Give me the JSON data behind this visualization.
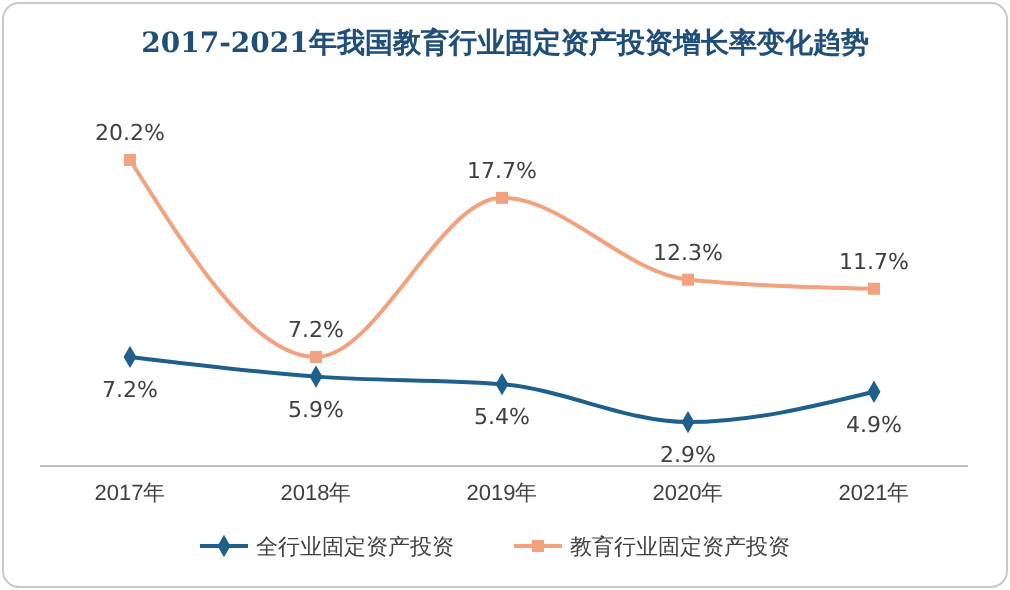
{
  "chart_data": {
    "type": "line",
    "title": "2017-2021年我国教育行业固定资产投资增长率变化趋势",
    "categories": [
      "2017年",
      "2018年",
      "2019年",
      "2020年",
      "2021年"
    ],
    "series": [
      {
        "name": "全行业固定资产投资",
        "color": "#1f5f8b",
        "marker": "diamond",
        "values": [
          7.2,
          5.9,
          5.4,
          2.9,
          4.9
        ],
        "value_labels": [
          "7.2%",
          "5.9%",
          "5.4%",
          "2.9%",
          "4.9%"
        ]
      },
      {
        "name": "教育行业固定资产投资",
        "color": "#f2a27e",
        "marker": "square",
        "values": [
          20.2,
          7.2,
          17.7,
          12.3,
          11.7
        ],
        "value_labels": [
          "20.2%",
          "7.2%",
          "17.7%",
          "12.3%",
          "11.7%"
        ]
      }
    ],
    "legend": "bottom",
    "grid": false
  }
}
